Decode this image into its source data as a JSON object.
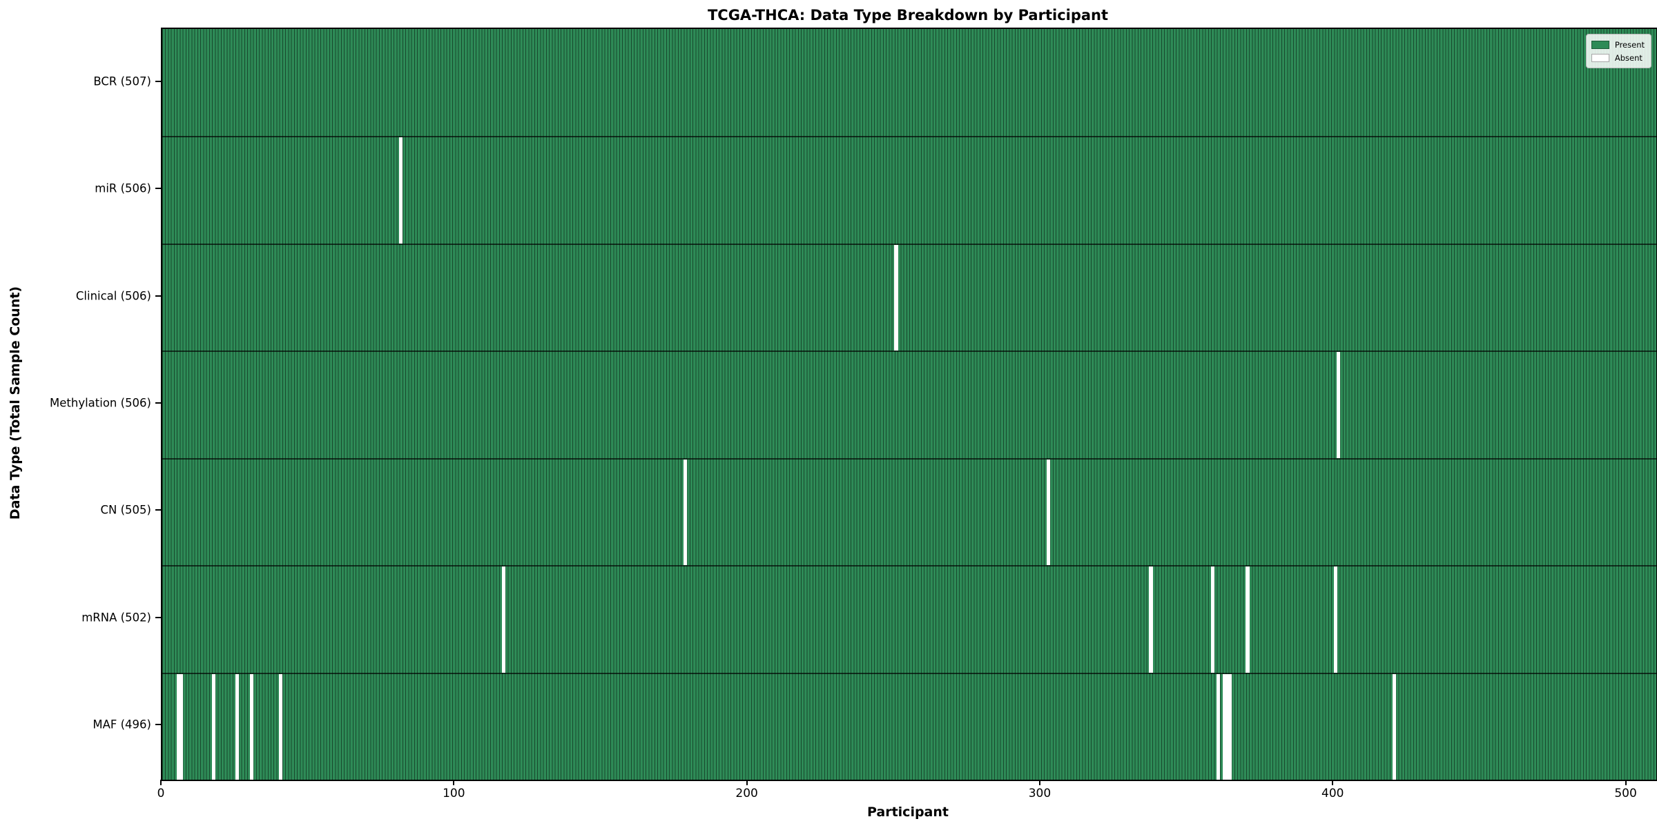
{
  "figure": {
    "title": "TCGA-THCA: Data Type Breakdown by Participant",
    "x_axis_title": "Participant",
    "y_axis_title": "Data Type (Total Sample Count)"
  },
  "legend": {
    "present_label": "Present",
    "absent_label": "Absent"
  },
  "colors": {
    "present": "#2e8b57",
    "absent": "#ffffff",
    "bar_edge": "rgba(0,0,0,0.48)",
    "row_divider": "rgba(0,0,0,0.65)",
    "spine": "#000000"
  },
  "chart_data": {
    "type": "heatmap",
    "title": "TCGA-THCA: Data Type Breakdown by Participant",
    "xlabel": "Participant",
    "ylabel": "Data Type (Total Sample Count)",
    "x_ticks": [
      0,
      100,
      200,
      300,
      400,
      500
    ],
    "x_range": [
      0,
      510
    ],
    "total_participants": 507,
    "grid": false,
    "legend_position": "upper right",
    "legend_entries": [
      {
        "label": "Present",
        "color": "#2e8b57"
      },
      {
        "label": "Absent",
        "color": "#ffffff"
      }
    ],
    "rows": [
      {
        "label": "BCR (507)",
        "data_type": "BCR",
        "present_count": 507,
        "absent_participants": []
      },
      {
        "label": "miR (506)",
        "data_type": "miR",
        "present_count": 506,
        "absent_participants": [
          81
        ]
      },
      {
        "label": "Clinical (506)",
        "data_type": "Clinical",
        "present_count": 506,
        "absent_participants": [
          250
        ]
      },
      {
        "label": "Methylation (506)",
        "data_type": "Methylation",
        "present_count": 506,
        "absent_participants": [
          401
        ]
      },
      {
        "label": "CN (505)",
        "data_type": "CN",
        "present_count": 505,
        "absent_participants": [
          178,
          302
        ]
      },
      {
        "label": "mRNA (502)",
        "data_type": "mRNA",
        "present_count": 502,
        "absent_participants": [
          116,
          337,
          358,
          370,
          400
        ]
      },
      {
        "label": "MAF (496)",
        "data_type": "MAF",
        "present_count": 496,
        "absent_participants": [
          5,
          6,
          17,
          25,
          30,
          40,
          360,
          362,
          363,
          364,
          420
        ]
      }
    ]
  }
}
